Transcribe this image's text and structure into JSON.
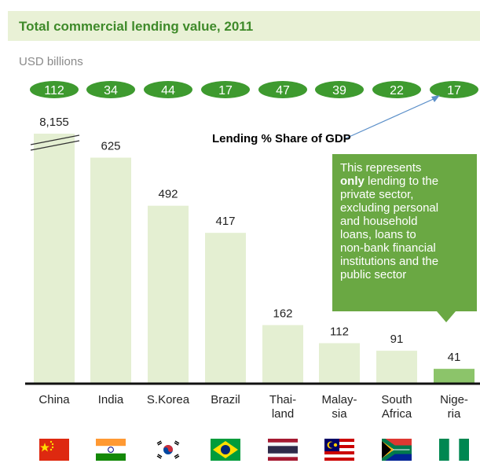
{
  "chart_data": {
    "type": "bar",
    "title": "Total commercial lending value, 2011",
    "unit_label": "USD billions",
    "categories": [
      [
        "China"
      ],
      [
        "India"
      ],
      [
        "S.Korea"
      ],
      [
        "Brazil"
      ],
      [
        "Thai-",
        "land"
      ],
      [
        "Malay-",
        "sia"
      ],
      [
        "South",
        "Africa"
      ],
      [
        "Nige-",
        "ria"
      ]
    ],
    "values": [
      8155,
      625,
      492,
      417,
      162,
      112,
      91,
      41
    ],
    "value_labels": [
      "8,155",
      "625",
      "492",
      "417",
      "162",
      "112",
      "91",
      "41"
    ],
    "broken_axis_bar": 0,
    "gdp_share_label": "Lending % Share of GDP",
    "gdp_share": [
      112,
      34,
      44,
      17,
      47,
      39,
      22,
      17
    ],
    "colors": {
      "bar": "#e4efd2",
      "last_bar": "#8cc46a",
      "pill": "#3e9a2f",
      "title": "#3f8a2a",
      "note_box": "#6aa843",
      "arrow": "#5b8fc9"
    }
  },
  "note": {
    "lines": [
      "This represents",
      [
        "only",
        " lending to the"
      ],
      "private sector,",
      "excluding personal",
      "and household",
      "loans, loans to",
      "non-bank financial",
      "institutions and the",
      "public sector"
    ]
  },
  "flags": [
    "china-flag",
    "india-flag",
    "south-korea-flag",
    "brazil-flag",
    "thailand-flag",
    "malaysia-flag",
    "south-africa-flag",
    "nigeria-flag"
  ]
}
